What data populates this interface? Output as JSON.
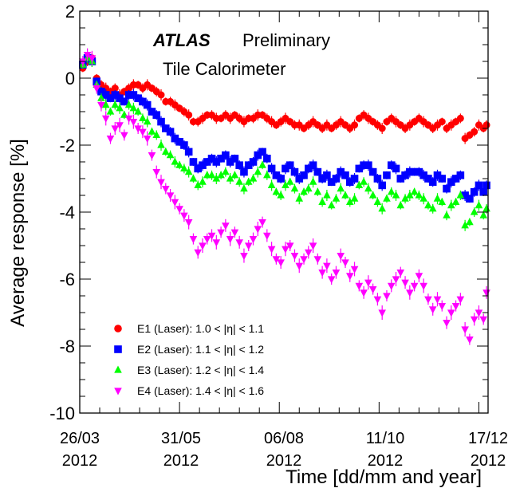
{
  "chart_data": {
    "type": "scatter",
    "title_main": "ATLAS",
    "title_rest": "Preliminary",
    "subtitle": "Tile Calorimeter",
    "xlabel": "Time [dd/mm and year]",
    "ylabel": "Average response [%]",
    "ylim": [
      -10,
      2
    ],
    "yticks": [
      "2",
      "0",
      "-2",
      "-4",
      "-6",
      "-8",
      "-10"
    ],
    "xlim": [
      "2012-03-26",
      "2012-12-17"
    ],
    "xticks": [
      {
        "date": "2012-03-26",
        "label": "26/03",
        "year": "2012"
      },
      {
        "date": "2012-05-31",
        "label": "31/05",
        "year": "2012"
      },
      {
        "date": "2012-08-06",
        "label": "06/08",
        "year": "2012"
      },
      {
        "date": "2012-10-11",
        "label": "11/10",
        "year": "2012"
      },
      {
        "date": "2012-12-17",
        "label": "17/12",
        "year": "2012"
      }
    ],
    "grid": false,
    "legend_position": "bottom-left",
    "series": [
      {
        "name": "E1 (Laser): 1.0 < |η| < 1.1",
        "marker": "circle",
        "color": "#ff0000",
        "x": [
          "2012-03-28",
          "2012-03-31",
          "2012-04-03",
          "2012-04-06",
          "2012-04-09",
          "2012-04-12",
          "2012-04-15",
          "2012-04-18",
          "2012-04-21",
          "2012-04-24",
          "2012-04-27",
          "2012-04-30",
          "2012-05-03",
          "2012-05-06",
          "2012-05-09",
          "2012-05-12",
          "2012-05-15",
          "2012-05-18",
          "2012-05-21",
          "2012-05-24",
          "2012-05-27",
          "2012-05-30",
          "2012-06-02",
          "2012-06-05",
          "2012-06-08",
          "2012-06-11",
          "2012-06-14",
          "2012-06-17",
          "2012-06-20",
          "2012-06-23",
          "2012-06-26",
          "2012-06-29",
          "2012-07-02",
          "2012-07-05",
          "2012-07-08",
          "2012-07-11",
          "2012-07-14",
          "2012-07-17",
          "2012-07-20",
          "2012-07-23",
          "2012-07-26",
          "2012-07-29",
          "2012-08-01",
          "2012-08-04",
          "2012-08-07",
          "2012-08-10",
          "2012-08-13",
          "2012-08-16",
          "2012-08-19",
          "2012-08-22",
          "2012-08-25",
          "2012-08-28",
          "2012-08-31",
          "2012-09-03",
          "2012-09-06",
          "2012-09-09",
          "2012-09-12",
          "2012-09-15",
          "2012-09-18",
          "2012-09-21",
          "2012-09-24",
          "2012-09-27",
          "2012-09-30",
          "2012-10-03",
          "2012-10-06",
          "2012-10-09",
          "2012-10-12",
          "2012-10-15",
          "2012-10-18",
          "2012-10-21",
          "2012-10-24",
          "2012-10-27",
          "2012-10-30",
          "2012-11-02",
          "2012-11-05",
          "2012-11-08",
          "2012-11-11",
          "2012-11-14",
          "2012-11-17",
          "2012-11-20",
          "2012-11-23",
          "2012-11-26",
          "2012-11-29",
          "2012-12-02",
          "2012-12-05",
          "2012-12-08",
          "2012-12-11",
          "2012-12-14",
          "2012-12-16"
        ],
        "y": [
          0.3,
          0.5,
          0.6,
          0.0,
          -0.2,
          -0.3,
          -0.4,
          -0.3,
          -0.5,
          -0.4,
          -0.3,
          -0.2,
          -0.2,
          -0.3,
          -0.2,
          -0.3,
          -0.4,
          -0.5,
          -0.7,
          -0.7,
          -0.8,
          -0.9,
          -1.0,
          -1.1,
          -1.3,
          -1.3,
          -1.2,
          -1.1,
          -1.1,
          -1.2,
          -1.2,
          -1.1,
          -1.2,
          -1.1,
          -1.2,
          -1.3,
          -1.2,
          -1.2,
          -1.1,
          -1.1,
          -1.2,
          -1.3,
          -1.4,
          -1.3,
          -1.2,
          -1.3,
          -1.4,
          -1.4,
          -1.5,
          -1.4,
          -1.3,
          -1.4,
          -1.5,
          -1.4,
          -1.5,
          -1.4,
          -1.3,
          -1.4,
          -1.5,
          -1.4,
          -1.2,
          -1.1,
          -1.2,
          -1.3,
          -1.4,
          -1.5,
          -1.3,
          -1.2,
          -1.3,
          -1.4,
          -1.5,
          -1.4,
          -1.3,
          -1.2,
          -1.3,
          -1.4,
          -1.5,
          -1.4,
          -1.3,
          -1.5,
          -1.4,
          -1.3,
          -1.2,
          -1.8,
          -1.7,
          -1.6,
          -1.4,
          -1.5,
          -1.4
        ]
      },
      {
        "name": "E2 (Laser): 1.1 < |η| < 1.2",
        "marker": "square",
        "color": "#0000ff",
        "x": [
          "2012-03-28",
          "2012-03-31",
          "2012-04-03",
          "2012-04-06",
          "2012-04-09",
          "2012-04-12",
          "2012-04-15",
          "2012-04-18",
          "2012-04-21",
          "2012-04-24",
          "2012-04-27",
          "2012-04-30",
          "2012-05-03",
          "2012-05-06",
          "2012-05-09",
          "2012-05-12",
          "2012-05-15",
          "2012-05-18",
          "2012-05-21",
          "2012-05-24",
          "2012-05-27",
          "2012-05-30",
          "2012-06-02",
          "2012-06-05",
          "2012-06-08",
          "2012-06-11",
          "2012-06-14",
          "2012-06-17",
          "2012-06-20",
          "2012-06-23",
          "2012-06-26",
          "2012-06-29",
          "2012-07-02",
          "2012-07-05",
          "2012-07-08",
          "2012-07-11",
          "2012-07-14",
          "2012-07-17",
          "2012-07-20",
          "2012-07-23",
          "2012-07-26",
          "2012-07-29",
          "2012-08-01",
          "2012-08-04",
          "2012-08-07",
          "2012-08-10",
          "2012-08-13",
          "2012-08-16",
          "2012-08-19",
          "2012-08-22",
          "2012-08-25",
          "2012-08-28",
          "2012-08-31",
          "2012-09-03",
          "2012-09-06",
          "2012-09-09",
          "2012-09-12",
          "2012-09-15",
          "2012-09-18",
          "2012-09-21",
          "2012-09-24",
          "2012-09-27",
          "2012-09-30",
          "2012-10-03",
          "2012-10-06",
          "2012-10-09",
          "2012-10-12",
          "2012-10-15",
          "2012-10-18",
          "2012-10-21",
          "2012-10-24",
          "2012-10-27",
          "2012-10-30",
          "2012-11-02",
          "2012-11-05",
          "2012-11-08",
          "2012-11-11",
          "2012-11-14",
          "2012-11-17",
          "2012-11-20",
          "2012-11-23",
          "2012-11-26",
          "2012-11-29",
          "2012-12-02",
          "2012-12-05",
          "2012-12-08",
          "2012-12-11",
          "2012-12-14",
          "2012-12-16"
        ],
        "y": [
          0.4,
          0.6,
          0.5,
          -0.1,
          -0.4,
          -0.5,
          -0.6,
          -0.5,
          -0.6,
          -0.7,
          -0.5,
          -0.5,
          -0.6,
          -0.7,
          -0.8,
          -1.0,
          -1.1,
          -1.3,
          -1.5,
          -1.6,
          -1.8,
          -1.9,
          -2.0,
          -2.2,
          -2.5,
          -2.7,
          -2.6,
          -2.5,
          -2.4,
          -2.5,
          -2.4,
          -2.3,
          -2.5,
          -2.4,
          -2.6,
          -2.8,
          -2.6,
          -2.5,
          -2.3,
          -2.2,
          -2.4,
          -2.7,
          -2.9,
          -3.0,
          -2.7,
          -2.6,
          -2.8,
          -3.0,
          -2.9,
          -2.7,
          -2.6,
          -2.8,
          -3.0,
          -2.9,
          -3.1,
          -3.0,
          -2.8,
          -2.9,
          -3.1,
          -3.0,
          -2.7,
          -2.6,
          -2.6,
          -2.8,
          -3.0,
          -3.2,
          -2.9,
          -2.6,
          -2.7,
          -3.0,
          -2.9,
          -2.8,
          -2.8,
          -2.8,
          -2.9,
          -3.0,
          -3.1,
          -2.9,
          -3.0,
          -3.3,
          -3.1,
          -3.0,
          -2.9,
          -3.5,
          -3.6,
          -3.4,
          -3.2,
          -3.4,
          -3.2
        ]
      },
      {
        "name": "E3 (Laser): 1.2 < |η| < 1.4",
        "marker": "triangle-up",
        "color": "#00ff00",
        "x": [
          "2012-03-28",
          "2012-03-31",
          "2012-04-03",
          "2012-04-06",
          "2012-04-09",
          "2012-04-12",
          "2012-04-15",
          "2012-04-18",
          "2012-04-21",
          "2012-04-24",
          "2012-04-27",
          "2012-04-30",
          "2012-05-03",
          "2012-05-06",
          "2012-05-09",
          "2012-05-12",
          "2012-05-15",
          "2012-05-18",
          "2012-05-21",
          "2012-05-24",
          "2012-05-27",
          "2012-05-30",
          "2012-06-02",
          "2012-06-05",
          "2012-06-08",
          "2012-06-11",
          "2012-06-14",
          "2012-06-17",
          "2012-06-20",
          "2012-06-23",
          "2012-06-26",
          "2012-06-29",
          "2012-07-02",
          "2012-07-05",
          "2012-07-08",
          "2012-07-11",
          "2012-07-14",
          "2012-07-17",
          "2012-07-20",
          "2012-07-23",
          "2012-07-26",
          "2012-07-29",
          "2012-08-01",
          "2012-08-04",
          "2012-08-07",
          "2012-08-10",
          "2012-08-13",
          "2012-08-16",
          "2012-08-19",
          "2012-08-22",
          "2012-08-25",
          "2012-08-28",
          "2012-08-31",
          "2012-09-03",
          "2012-09-06",
          "2012-09-09",
          "2012-09-12",
          "2012-09-15",
          "2012-09-18",
          "2012-09-21",
          "2012-09-24",
          "2012-09-27",
          "2012-09-30",
          "2012-10-03",
          "2012-10-06",
          "2012-10-09",
          "2012-10-12",
          "2012-10-15",
          "2012-10-18",
          "2012-10-21",
          "2012-10-24",
          "2012-10-27",
          "2012-10-30",
          "2012-11-02",
          "2012-11-05",
          "2012-11-08",
          "2012-11-11",
          "2012-11-14",
          "2012-11-17",
          "2012-11-20",
          "2012-11-23",
          "2012-11-26",
          "2012-11-29",
          "2012-12-02",
          "2012-12-05",
          "2012-12-08",
          "2012-12-11",
          "2012-12-14",
          "2012-12-16"
        ],
        "y": [
          0.4,
          0.6,
          0.5,
          -0.2,
          -0.6,
          -0.8,
          -1.0,
          -0.8,
          -0.9,
          -1.1,
          -0.8,
          -0.9,
          -1.0,
          -1.2,
          -1.3,
          -1.6,
          -1.7,
          -2.0,
          -2.2,
          -2.3,
          -2.5,
          -2.6,
          -2.7,
          -2.8,
          -3.0,
          -3.2,
          -3.1,
          -2.9,
          -2.9,
          -3.0,
          -2.9,
          -2.8,
          -3.0,
          -2.9,
          -3.1,
          -3.3,
          -3.1,
          -3.0,
          -2.8,
          -2.6,
          -2.9,
          -3.2,
          -3.4,
          -3.5,
          -3.2,
          -3.1,
          -3.3,
          -3.6,
          -3.4,
          -3.3,
          -3.1,
          -3.4,
          -3.7,
          -3.5,
          -3.8,
          -3.6,
          -3.3,
          -3.5,
          -3.7,
          -3.6,
          -3.2,
          -3.1,
          -3.3,
          -3.5,
          -3.7,
          -3.9,
          -3.6,
          -3.4,
          -3.5,
          -3.8,
          -3.6,
          -3.5,
          -3.4,
          -3.5,
          -3.6,
          -3.8,
          -3.9,
          -3.6,
          -3.7,
          -4.1,
          -3.8,
          -3.7,
          -3.5,
          -4.4,
          -4.3,
          -4.0,
          -3.8,
          -4.1,
          -3.9
        ]
      },
      {
        "name": "E4 (Laser): 1.4 < |η| < 1.6",
        "marker": "triangle-down",
        "color": "#ff00ff",
        "x": [
          "2012-03-28",
          "2012-03-31",
          "2012-04-03",
          "2012-04-06",
          "2012-04-09",
          "2012-04-12",
          "2012-04-15",
          "2012-04-18",
          "2012-04-21",
          "2012-04-24",
          "2012-04-27",
          "2012-04-30",
          "2012-05-03",
          "2012-05-06",
          "2012-05-09",
          "2012-05-12",
          "2012-05-15",
          "2012-05-18",
          "2012-05-21",
          "2012-05-24",
          "2012-05-27",
          "2012-05-30",
          "2012-06-02",
          "2012-06-05",
          "2012-06-08",
          "2012-06-11",
          "2012-06-14",
          "2012-06-17",
          "2012-06-20",
          "2012-06-23",
          "2012-06-26",
          "2012-06-29",
          "2012-07-02",
          "2012-07-05",
          "2012-07-08",
          "2012-07-11",
          "2012-07-14",
          "2012-07-17",
          "2012-07-20",
          "2012-07-23",
          "2012-07-26",
          "2012-07-29",
          "2012-08-01",
          "2012-08-04",
          "2012-08-07",
          "2012-08-10",
          "2012-08-13",
          "2012-08-16",
          "2012-08-19",
          "2012-08-22",
          "2012-08-25",
          "2012-08-28",
          "2012-08-31",
          "2012-09-03",
          "2012-09-06",
          "2012-09-09",
          "2012-09-12",
          "2012-09-15",
          "2012-09-18",
          "2012-09-21",
          "2012-09-24",
          "2012-09-27",
          "2012-09-30",
          "2012-10-03",
          "2012-10-06",
          "2012-10-09",
          "2012-10-12",
          "2012-10-15",
          "2012-10-18",
          "2012-10-21",
          "2012-10-24",
          "2012-10-27",
          "2012-10-30",
          "2012-11-02",
          "2012-11-05",
          "2012-11-08",
          "2012-11-11",
          "2012-11-14",
          "2012-11-17",
          "2012-11-20",
          "2012-11-23",
          "2012-11-26",
          "2012-11-29",
          "2012-12-02",
          "2012-12-05",
          "2012-12-08",
          "2012-12-11",
          "2012-12-14",
          "2012-12-16"
        ],
        "y": [
          0.5,
          0.7,
          0.6,
          -0.3,
          -0.8,
          -1.2,
          -1.8,
          -1.5,
          -1.4,
          -1.7,
          -1.2,
          -1.3,
          -1.5,
          -1.6,
          -1.8,
          -2.3,
          -2.8,
          -3.1,
          -3.3,
          -3.5,
          -3.7,
          -3.9,
          -4.1,
          -4.3,
          -4.8,
          -5.2,
          -5.0,
          -4.8,
          -4.7,
          -4.9,
          -4.6,
          -4.4,
          -4.8,
          -4.6,
          -4.9,
          -5.3,
          -5.0,
          -4.8,
          -4.5,
          -4.3,
          -4.7,
          -5.1,
          -5.4,
          -5.5,
          -5.1,
          -5.0,
          -5.3,
          -5.6,
          -5.4,
          -5.2,
          -5.0,
          -5.4,
          -5.8,
          -5.6,
          -6.0,
          -5.8,
          -5.3,
          -5.5,
          -5.9,
          -5.7,
          -6.2,
          -6.4,
          -6.1,
          -6.3,
          -6.6,
          -7.0,
          -6.5,
          -6.2,
          -6.0,
          -5.8,
          -6.1,
          -6.4,
          -6.2,
          -5.9,
          -6.2,
          -6.6,
          -6.9,
          -6.6,
          -6.8,
          -7.3,
          -7.0,
          -6.8,
          -6.6,
          -7.5,
          -7.8,
          -7.2,
          -7.0,
          -7.2,
          -6.4
        ]
      }
    ]
  }
}
